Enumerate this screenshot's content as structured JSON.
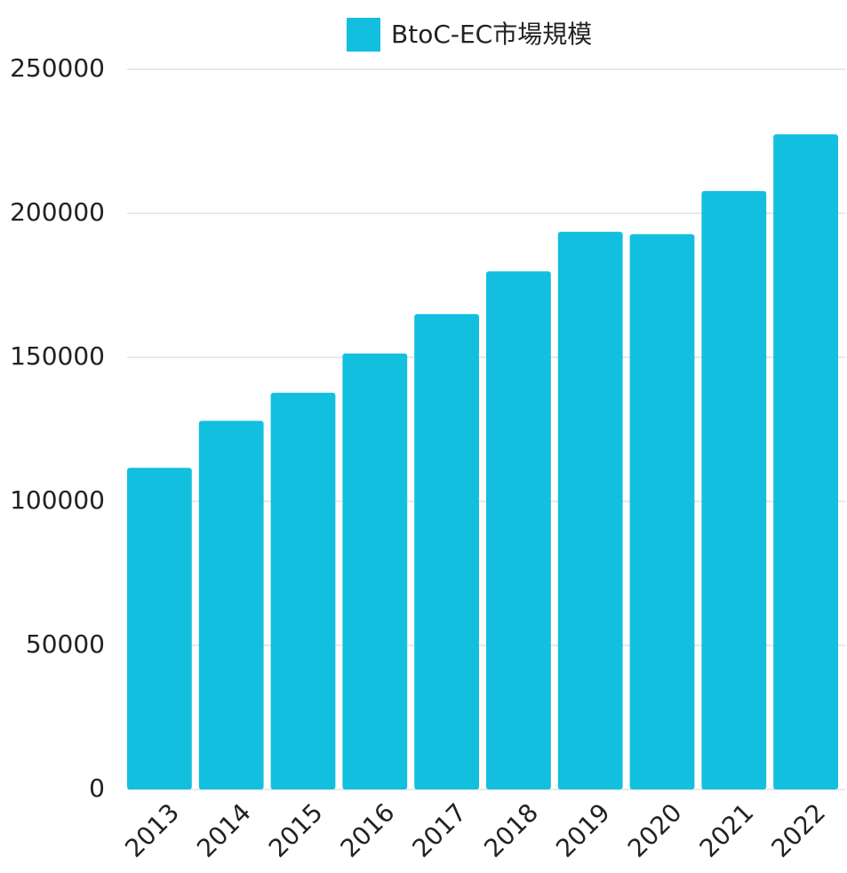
{
  "chart_data": {
    "type": "bar",
    "categories": [
      "2013",
      "2014",
      "2015",
      "2016",
      "2017",
      "2018",
      "2019",
      "2020",
      "2021",
      "2022"
    ],
    "series": [
      {
        "name": "BtoC-EC市場規模",
        "color": "#12bfdf",
        "values": [
          111660,
          127970,
          137746,
          151358,
          165054,
          179845,
          193609,
          192779,
          207760,
          227449
        ]
      }
    ],
    "ylim": [
      0,
      250000
    ],
    "yticks": [
      0,
      50000,
      100000,
      150000,
      200000,
      250000
    ],
    "grid": true,
    "legend": "top"
  }
}
